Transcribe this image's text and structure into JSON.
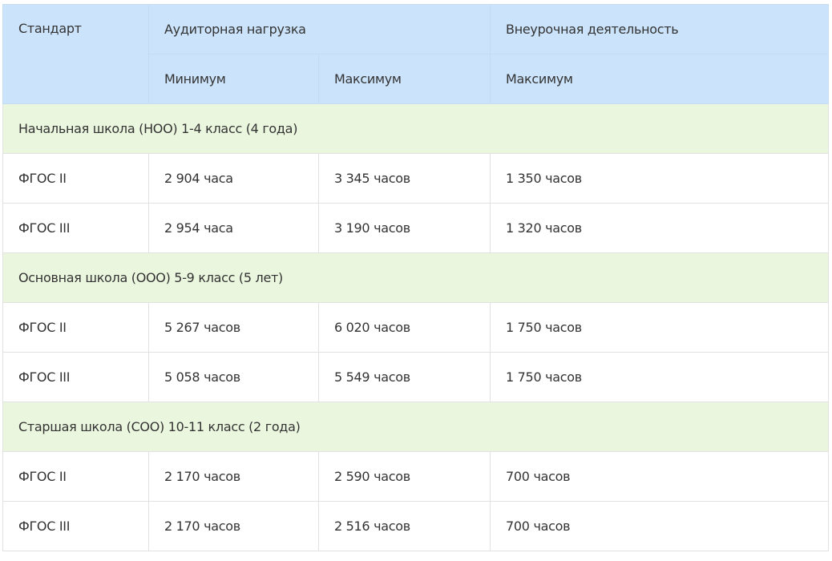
{
  "header": {
    "standard": "Стандарт",
    "classroom": "Аудиторная нагрузка",
    "extracurricular": "Внеурочная деятельность",
    "min": "Минимум",
    "max": "Максимум",
    "max2": "Максимум"
  },
  "groups": [
    {
      "title": "Начальная школа (НОО) 1-4 класс (4 года)",
      "rows": [
        {
          "standard": "ФГОС II",
          "min": "2 904 часа",
          "max": "3 345 часов",
          "extra": "1 350 часов"
        },
        {
          "standard": "ФГОС III",
          "min": "2 954 часа",
          "max": "3 190 часов",
          "extra": "1 320 часов"
        }
      ]
    },
    {
      "title": "Основная школа (ООО) 5-9 класс (5 лет)",
      "rows": [
        {
          "standard": "ФГОС II",
          "min": "5 267 часов",
          "max": "6 020 часов",
          "extra": "1 750 часов"
        },
        {
          "standard": "ФГОС III",
          "min": "5 058 часов",
          "max": "5 549 часов",
          "extra": "1 750 часов"
        }
      ]
    },
    {
      "title": "Старшая школа (СОО) 10-11 класс (2 года)",
      "rows": [
        {
          "standard": "ФГОС II",
          "min": "2 170 часов",
          "max": "2 590 часов",
          "extra": "700 часов"
        },
        {
          "standard": "ФГОС III",
          "min": "2 170 часов",
          "max": "2 516 часов",
          "extra": "700 часов"
        }
      ]
    }
  ]
}
